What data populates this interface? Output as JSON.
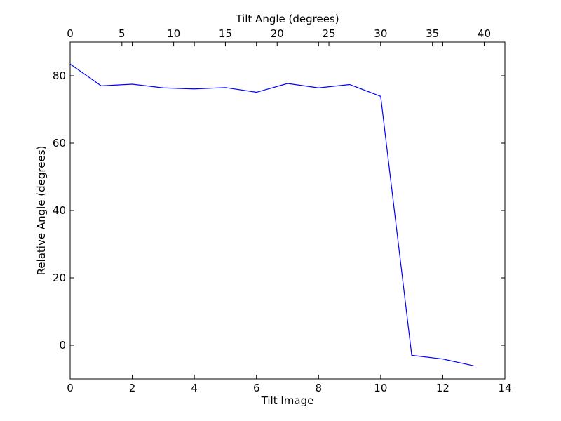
{
  "chart_data": {
    "type": "line",
    "title": "",
    "xlabel": "Tilt Image",
    "ylabel": "Relative Angle (degrees)",
    "top_xlabel": "Tilt Angle (degrees)",
    "xlim": [
      0,
      14
    ],
    "ylim": [
      -10,
      90
    ],
    "top_xlim": [
      0,
      42
    ],
    "x_ticks": [
      0,
      2,
      4,
      6,
      8,
      10,
      12,
      14
    ],
    "y_ticks": [
      0,
      20,
      40,
      60,
      80
    ],
    "top_x_ticks": [
      0,
      5,
      10,
      15,
      20,
      25,
      30,
      35,
      40
    ],
    "x_tick_labels": [
      "0",
      "2",
      "4",
      "6",
      "8",
      "10",
      "12",
      "14"
    ],
    "y_tick_labels": [
      "0",
      "20",
      "40",
      "60",
      "80"
    ],
    "top_x_tick_labels": [
      "0",
      "5",
      "10",
      "15",
      "20",
      "25",
      "30",
      "35",
      "40"
    ],
    "grid": false,
    "series": [
      {
        "color": "#0000ff",
        "x": [
          0,
          1,
          2,
          3,
          4,
          5,
          6,
          7,
          8,
          9,
          10,
          11,
          12,
          13
        ],
        "y": [
          83.5,
          77.0,
          77.5,
          76.4,
          76.1,
          76.5,
          75.1,
          77.7,
          76.4,
          77.4,
          73.9,
          -3.0,
          -4.1,
          -6.1
        ]
      }
    ]
  }
}
